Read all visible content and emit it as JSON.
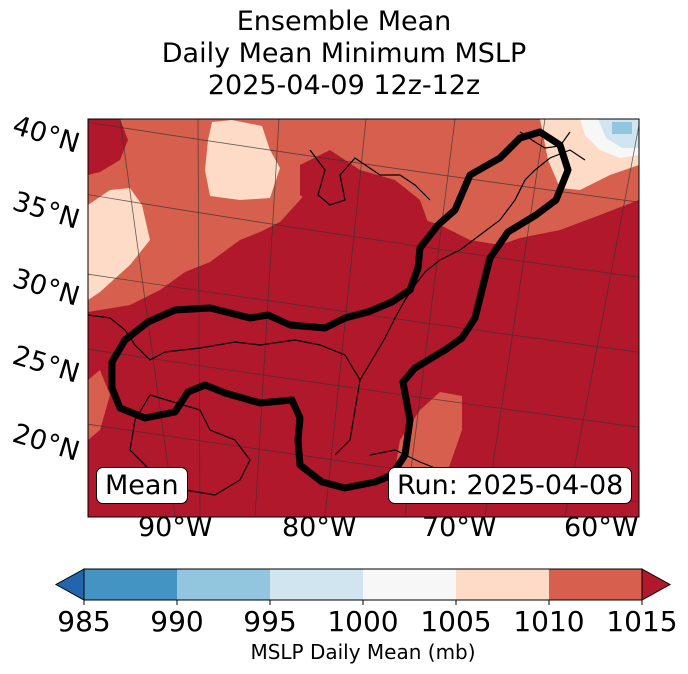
{
  "title": {
    "line1": "Ensemble Mean",
    "line2": "Daily Mean Minimum MSLP",
    "line3": "2025-04-09 12z-12z"
  },
  "map": {
    "lat_labels": [
      "40°N",
      "35°N",
      "30°N",
      "25°N",
      "20°N"
    ],
    "lon_labels": [
      "90°W",
      "80°W",
      "70°W",
      "60°W"
    ],
    "mean_label": "Mean",
    "run_label": "Run: 2025-04-08",
    "colors": {
      "ocean_bg": "#b2182b",
      "level_1005_1010": "#fddbc7",
      "level_1010_1015": "#d6604d",
      "level_1000_1005": "#f7f7f7",
      "level_995_1000": "#d1e5f0",
      "level_990_995": "#92c5de",
      "contour": "#000000"
    }
  },
  "colorbar": {
    "ticks": [
      "985",
      "990",
      "995",
      "1000",
      "1005",
      "1010",
      "1015"
    ],
    "label": "MSLP Daily Mean (mb)",
    "colors": [
      "#2166ac",
      "#4393c3",
      "#92c5de",
      "#d1e5f0",
      "#f7f7f7",
      "#fddbc7",
      "#d6604d",
      "#b2182b"
    ]
  }
}
